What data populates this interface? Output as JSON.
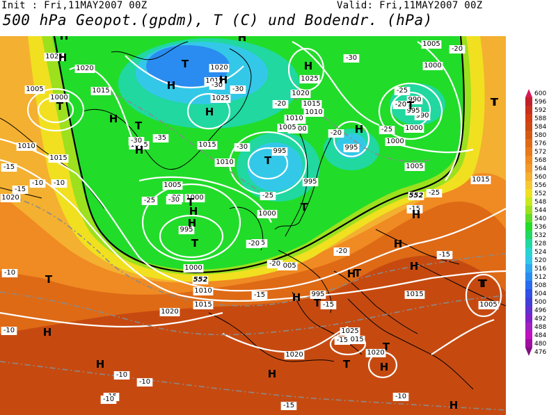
{
  "header": {
    "init": "Init : Fri,11MAY2007 00Z",
    "valid": "Valid: Fri,11MAY2007 00Z",
    "title": "500 hPa Geopot.(gpdm), T (C) und Bodendr. (hPa)"
  },
  "colors": {
    "outer_red": "#c64a10",
    "orange": "#e8781a",
    "light_orange": "#f29a2c",
    "yellow": "#f0d020",
    "lime": "#a8e020",
    "green": "#22dc2a",
    "teal": "#20d8a0",
    "cyan": "#34c8e8",
    "blue": "#2a8cf0",
    "isobar": "#ffffff",
    "coast": "#000000"
  },
  "legend": {
    "values": [
      "600",
      "596",
      "592",
      "588",
      "584",
      "580",
      "576",
      "572",
      "568",
      "564",
      "560",
      "556",
      "552",
      "548",
      "544",
      "540",
      "536",
      "532",
      "528",
      "524",
      "520",
      "516",
      "512",
      "508",
      "504",
      "500",
      "496",
      "492",
      "488",
      "484",
      "480",
      "476"
    ],
    "colors": [
      "#d81a5a",
      "#c0202a",
      "#c8301e",
      "#d43c14",
      "#cc4a12",
      "#d45a14",
      "#de6a16",
      "#e8781a",
      "#f08a22",
      "#f29a2c",
      "#f4b030",
      "#f6c836",
      "#f0e020",
      "#c8e820",
      "#9ce01e",
      "#60dc28",
      "#22dc2a",
      "#20d860",
      "#20d8a0",
      "#28d4d0",
      "#34c8e8",
      "#30a8f0",
      "#2a8cf0",
      "#2a6cf0",
      "#3050e8",
      "#4040d8",
      "#6030d0",
      "#8020c8",
      "#a020c0",
      "#c010c0",
      "#a010a0",
      "#801080"
    ]
  },
  "map": {
    "pressure_labels": [
      {
        "text": "1025"
      },
      {
        "text": "1020"
      },
      {
        "text": "1015"
      },
      {
        "text": "1005"
      },
      {
        "text": "1000"
      },
      {
        "text": "1010"
      },
      {
        "text": "1015"
      },
      {
        "text": "1015"
      },
      {
        "text": "1020"
      },
      {
        "text": "1015"
      },
      {
        "text": "1025"
      },
      {
        "text": "1015"
      },
      {
        "text": "1010"
      },
      {
        "text": "1020"
      },
      {
        "text": "1025"
      },
      {
        "text": "1015"
      },
      {
        "text": "1010"
      },
      {
        "text": "1005"
      },
      {
        "text": "1000"
      },
      {
        "text": "995"
      },
      {
        "text": "990"
      },
      {
        "text": "1000"
      },
      {
        "text": "1005"
      },
      {
        "text": "1005"
      },
      {
        "text": "1000"
      },
      {
        "text": "995"
      },
      {
        "text": "1005"
      },
      {
        "text": "1000"
      },
      {
        "text": "995"
      },
      {
        "text": "995"
      },
      {
        "text": "1000"
      },
      {
        "text": "1010"
      },
      {
        "text": "1015"
      },
      {
        "text": "1020"
      },
      {
        "text": "1000"
      },
      {
        "text": "1005"
      },
      {
        "text": "1025"
      },
      {
        "text": "1015"
      },
      {
        "text": "1020"
      },
      {
        "text": "1020"
      },
      {
        "text": "1020"
      },
      {
        "text": "1015"
      },
      {
        "text": "1005"
      },
      {
        "text": "1015"
      },
      {
        "text": "995"
      },
      {
        "text": "990"
      },
      {
        "text": "995"
      },
      {
        "text": "1000"
      },
      {
        "text": "1005"
      },
      {
        "text": "1010"
      }
    ],
    "temp_labels": [
      {
        "text": "-20"
      },
      {
        "text": "-25"
      },
      {
        "text": "-30"
      },
      {
        "text": "-30"
      },
      {
        "text": "-30"
      },
      {
        "text": "-20"
      },
      {
        "text": "-25"
      },
      {
        "text": "-30"
      },
      {
        "text": "-35"
      },
      {
        "text": "-30"
      },
      {
        "text": "-25"
      },
      {
        "text": "-20"
      },
      {
        "text": "-20"
      },
      {
        "text": "-20"
      },
      {
        "text": "-25"
      },
      {
        "text": "-20"
      },
      {
        "text": "-25"
      },
      {
        "text": "-25"
      },
      {
        "text": "-20"
      },
      {
        "text": "-15"
      },
      {
        "text": "-15"
      },
      {
        "text": "-15"
      },
      {
        "text": "-15"
      },
      {
        "text": "-10"
      },
      {
        "text": "-10"
      },
      {
        "text": "-10"
      },
      {
        "text": "-10"
      },
      {
        "text": "-10"
      },
      {
        "text": "-15"
      },
      {
        "text": "-15"
      },
      {
        "text": "-15"
      },
      {
        "text": "-10"
      },
      {
        "text": "-10"
      },
      {
        "text": "-15"
      },
      {
        "text": "-15"
      },
      {
        "text": "-10"
      },
      {
        "text": "-20"
      },
      {
        "text": "-30"
      },
      {
        "text": "-15"
      },
      {
        "text": "-20"
      }
    ],
    "contour_labels": [
      {
        "text": "552"
      },
      {
        "text": "552"
      }
    ],
    "centers": [
      {
        "text": "H"
      },
      {
        "text": "T"
      },
      {
        "text": "H"
      },
      {
        "text": "H"
      },
      {
        "text": "T"
      },
      {
        "text": "H"
      },
      {
        "text": "H"
      },
      {
        "text": "T"
      },
      {
        "text": "H"
      },
      {
        "text": "H"
      },
      {
        "text": "T"
      },
      {
        "text": "H"
      },
      {
        "text": "T"
      },
      {
        "text": "T"
      },
      {
        "text": "T"
      },
      {
        "text": "H"
      },
      {
        "text": "T"
      },
      {
        "text": "H"
      },
      {
        "text": "T"
      },
      {
        "text": "H"
      },
      {
        "text": "H"
      },
      {
        "text": "T"
      },
      {
        "text": "H"
      },
      {
        "text": "T"
      },
      {
        "text": "H"
      },
      {
        "text": "T"
      },
      {
        "text": "H"
      },
      {
        "text": "H"
      },
      {
        "text": "T"
      },
      {
        "text": "H"
      },
      {
        "text": "T"
      },
      {
        "text": "T"
      },
      {
        "text": "H"
      },
      {
        "text": "H"
      },
      {
        "text": "H"
      },
      {
        "text": "T"
      },
      {
        "text": "H"
      },
      {
        "text": "T"
      },
      {
        "text": "H"
      }
    ]
  }
}
